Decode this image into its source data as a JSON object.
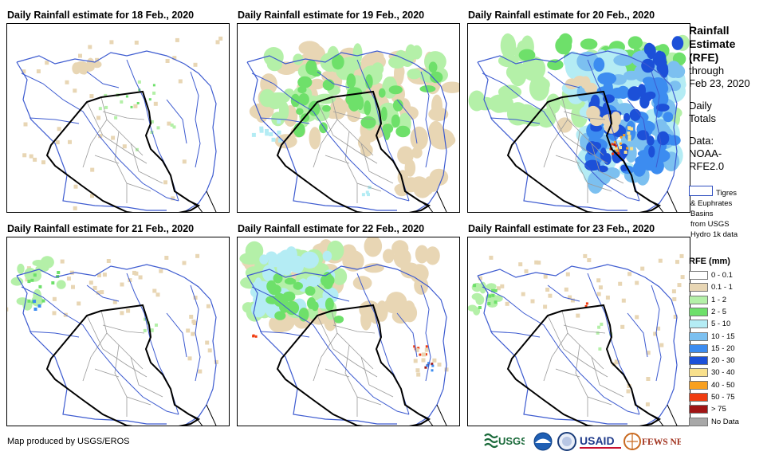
{
  "panels": [
    {
      "title": "Daily Rainfall estimate for 18 Feb., 2020",
      "pattern": "d18"
    },
    {
      "title": "Daily Rainfall estimate for 19 Feb., 2020",
      "pattern": "d19"
    },
    {
      "title": "Daily Rainfall estimate for 20 Feb., 2020",
      "pattern": "d20"
    },
    {
      "title": "Daily Rainfall estimate for 21 Feb., 2020",
      "pattern": "d21"
    },
    {
      "title": "Daily Rainfall estimate for 22 Feb., 2020",
      "pattern": "d22"
    },
    {
      "title": "Daily Rainfall estimate for 23 Feb., 2020",
      "pattern": "d23"
    }
  ],
  "side": {
    "title_line1": "Rainfall",
    "title_line2": "Estimate",
    "title_line3": "(RFE)",
    "through": "through",
    "date": "Feb 23, 2020",
    "daily1": "Daily",
    "daily2": "Totals",
    "data1": "Data:",
    "data2": "NOAA-",
    "data3": "RFE2.0"
  },
  "basin_note": {
    "line1": "Tigres",
    "line2": "& Euphrates",
    "line3": "Basins",
    "line4": "from USGS",
    "line5": "Hydro 1k data"
  },
  "legend": {
    "title": "RFE (mm)",
    "items": [
      {
        "label": "0 - 0.1",
        "color": "#ffffff"
      },
      {
        "label": "0.1 - 1",
        "color": "#e8d6b4"
      },
      {
        "label": "1 - 2",
        "color": "#b4f0a8"
      },
      {
        "label": "2 - 5",
        "color": "#6ee06a"
      },
      {
        "label": "5 - 10",
        "color": "#b4ecf4"
      },
      {
        "label": "10 - 15",
        "color": "#7cc0f0"
      },
      {
        "label": "15 - 20",
        "color": "#3c8cf0"
      },
      {
        "label": "20 - 30",
        "color": "#1c50d8"
      },
      {
        "label": "30 - 40",
        "color": "#f8e08c"
      },
      {
        "label": "40 - 50",
        "color": "#f8a020"
      },
      {
        "label": "50 - 75",
        "color": "#f03c10"
      },
      {
        "label": "> 75",
        "color": "#a01414"
      },
      {
        "label": "No Data",
        "color": "#a8a8a8"
      }
    ]
  },
  "credit": "Map produced by USGS/EROS",
  "logos": {
    "usgs": "USGS",
    "usaid": "USAID",
    "fews": "FEWS NET"
  }
}
